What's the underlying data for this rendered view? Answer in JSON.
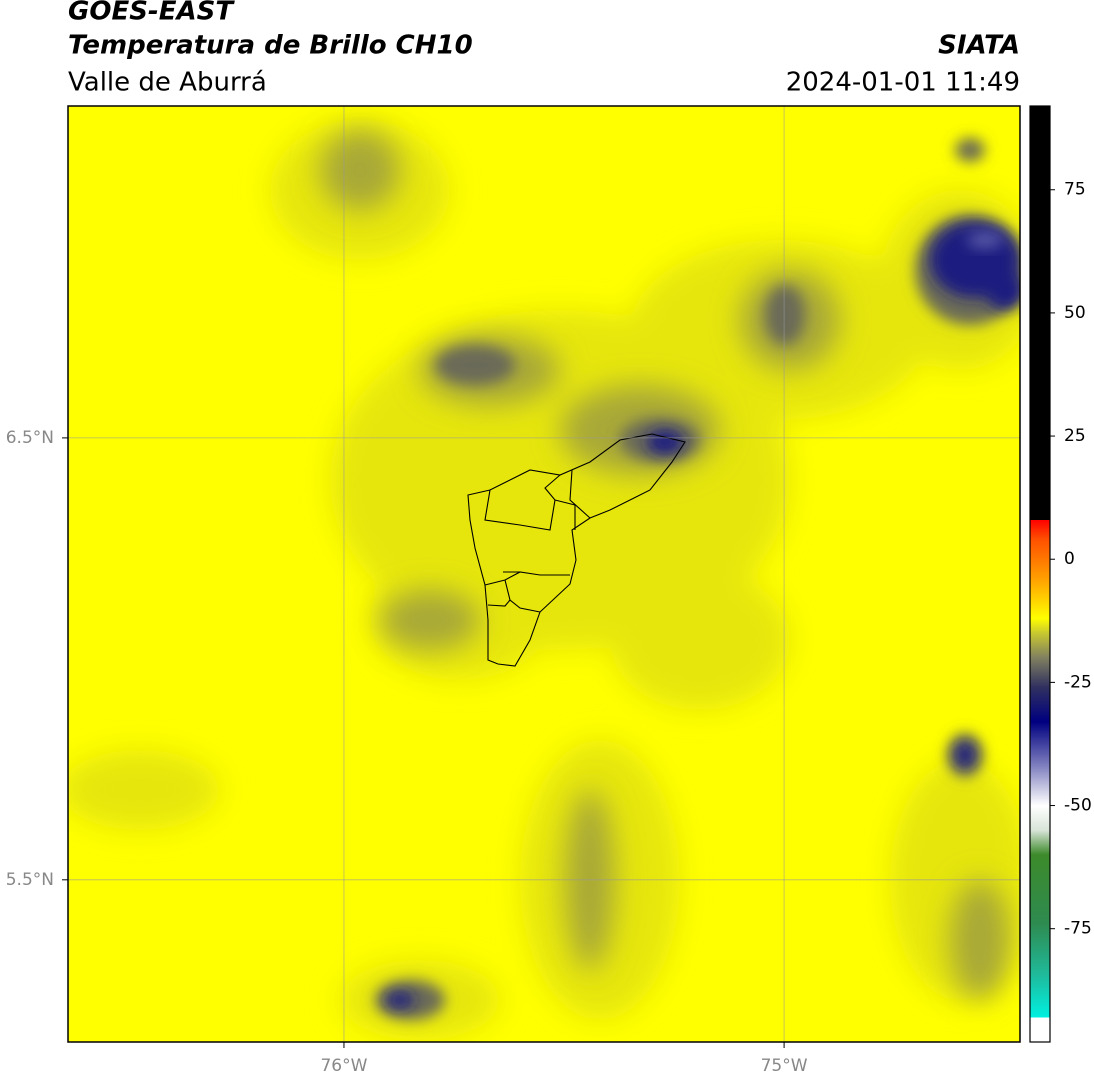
{
  "header": {
    "satellite": "GOES-EAST",
    "product": "Temperatura de Brillo CH10",
    "region": "Valle de Aburrá",
    "source": "SIATA",
    "datetime": "2024-01-01 11:49"
  },
  "map": {
    "xlim": [
      -76.627,
      -74.464
    ],
    "ylim": [
      5.133,
      7.251
    ],
    "xticks": [
      {
        "value": -76,
        "label": "76°W"
      },
      {
        "value": -75,
        "label": "75°W"
      }
    ],
    "yticks": [
      {
        "value": 6.5,
        "label": "6.5°N"
      },
      {
        "value": 5.5,
        "label": "5.5°N"
      }
    ],
    "grid": true
  },
  "colorbar": {
    "lim": [
      -98,
      92
    ],
    "ticks": [
      75,
      50,
      25,
      0,
      -25,
      -50,
      -75
    ],
    "stops": [
      {
        "value": -98,
        "color": "#ffffff"
      },
      {
        "value": -93,
        "color": "#ffffff"
      },
      {
        "value": -93,
        "color": "#00f0e0"
      },
      {
        "value": -84,
        "color": "#20b898"
      },
      {
        "value": -74,
        "color": "#2e8b50"
      },
      {
        "value": -60,
        "color": "#3c8a2a"
      },
      {
        "value": -55,
        "color": "#d8e4d8"
      },
      {
        "value": -50,
        "color": "#ffffff"
      },
      {
        "value": -42,
        "color": "#8080c0"
      },
      {
        "value": -33,
        "color": "#000080"
      },
      {
        "value": -26,
        "color": "#303060"
      },
      {
        "value": -20,
        "color": "#808060"
      },
      {
        "value": -15,
        "color": "#c8c830"
      },
      {
        "value": -12,
        "color": "#ffff00"
      },
      {
        "value": -4,
        "color": "#ffa000"
      },
      {
        "value": 4,
        "color": "#ff5000"
      },
      {
        "value": 8,
        "color": "#ff0000"
      },
      {
        "value": 8,
        "color": "#000000"
      },
      {
        "value": 92,
        "color": "#000000"
      }
    ]
  }
}
